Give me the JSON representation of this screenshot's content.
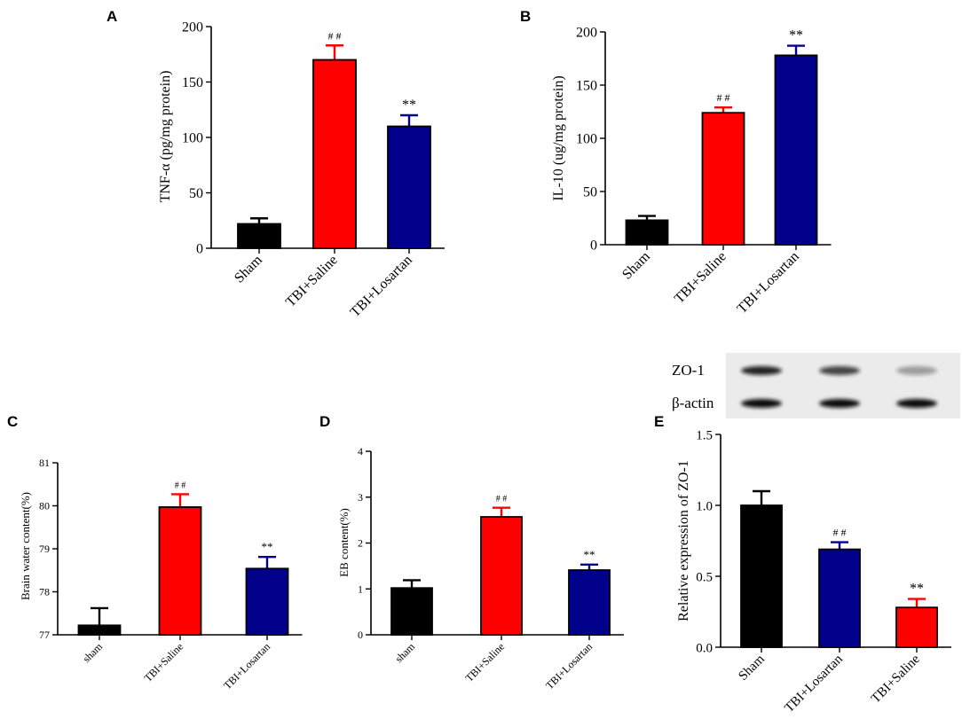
{
  "colors": {
    "black": "#000000",
    "red": "#ff0000",
    "navy": "#00008b",
    "axis": "#000000"
  },
  "chart_data": [
    {
      "panel": "A",
      "type": "bar",
      "categories": [
        "Sham",
        "TBI+Saline",
        "TBI+Losartan"
      ],
      "values": [
        22,
        170,
        110
      ],
      "errors": [
        5,
        13,
        10
      ],
      "annotations": [
        "",
        "# #",
        "**"
      ],
      "colors": [
        "#000000",
        "#ff0000",
        "#00008b"
      ],
      "ylabel": "TNF-α (pg/mg protein)",
      "ylim": [
        0,
        200
      ],
      "yticks": [
        0,
        50,
        100,
        150,
        200
      ],
      "tick_size": "large"
    },
    {
      "panel": "B",
      "type": "bar",
      "categories": [
        "Sham",
        "TBI+Saline",
        "TBI+Losartan"
      ],
      "values": [
        23,
        124,
        178
      ],
      "errors": [
        4,
        5,
        9
      ],
      "annotations": [
        "",
        "# #",
        "**"
      ],
      "colors": [
        "#000000",
        "#ff0000",
        "#00008b"
      ],
      "ylabel": "IL-10 (ug/mg protein)",
      "ylim": [
        0,
        200
      ],
      "yticks": [
        0,
        50,
        100,
        150,
        200
      ],
      "tick_size": "large"
    },
    {
      "panel": "C",
      "type": "bar",
      "categories": [
        "sham",
        "TBI+Saline",
        "TBI+Losartan"
      ],
      "values": [
        77.22,
        79.97,
        78.54
      ],
      "errors": [
        0.4,
        0.3,
        0.27
      ],
      "annotations": [
        "",
        "# #",
        "**"
      ],
      "colors": [
        "#000000",
        "#ff0000",
        "#00008b"
      ],
      "ylabel": "Brain water content(%)",
      "ylim": [
        77,
        81
      ],
      "yticks": [
        77,
        78,
        79,
        80,
        81
      ],
      "tick_size": "small"
    },
    {
      "panel": "D",
      "type": "bar",
      "categories": [
        "sham",
        "TBI+Saline",
        "TBI+Losartan"
      ],
      "values": [
        1.02,
        2.57,
        1.41
      ],
      "errors": [
        0.17,
        0.2,
        0.12
      ],
      "annotations": [
        "",
        "# #",
        "**"
      ],
      "colors": [
        "#000000",
        "#ff0000",
        "#00008b"
      ],
      "ylabel": "EB content(%)",
      "ylim": [
        0,
        4
      ],
      "yticks": [
        0,
        1,
        2,
        3,
        4
      ],
      "tick_size": "small"
    },
    {
      "panel": "E",
      "type": "bar",
      "categories": [
        "Sham",
        "TBI+Losartan",
        "TBI+Saline"
      ],
      "values": [
        1.0,
        0.69,
        0.28
      ],
      "errors": [
        0.1,
        0.05,
        0.06
      ],
      "annotations": [
        "",
        "# #",
        "**"
      ],
      "colors": [
        "#000000",
        "#00008b",
        "#ff0000"
      ],
      "ylabel": "Relative expression of ZO-1",
      "ylim": [
        0,
        1.5
      ],
      "yticks": [
        "0.0",
        "0.5",
        "1.0",
        "1.5"
      ],
      "tick_size": "large",
      "blot": {
        "rows": [
          "ZO-1",
          "β-actin"
        ],
        "band_intensity": [
          [
            0.9,
            0.75,
            0.35
          ],
          [
            1.0,
            1.0,
            1.0
          ]
        ]
      }
    }
  ]
}
